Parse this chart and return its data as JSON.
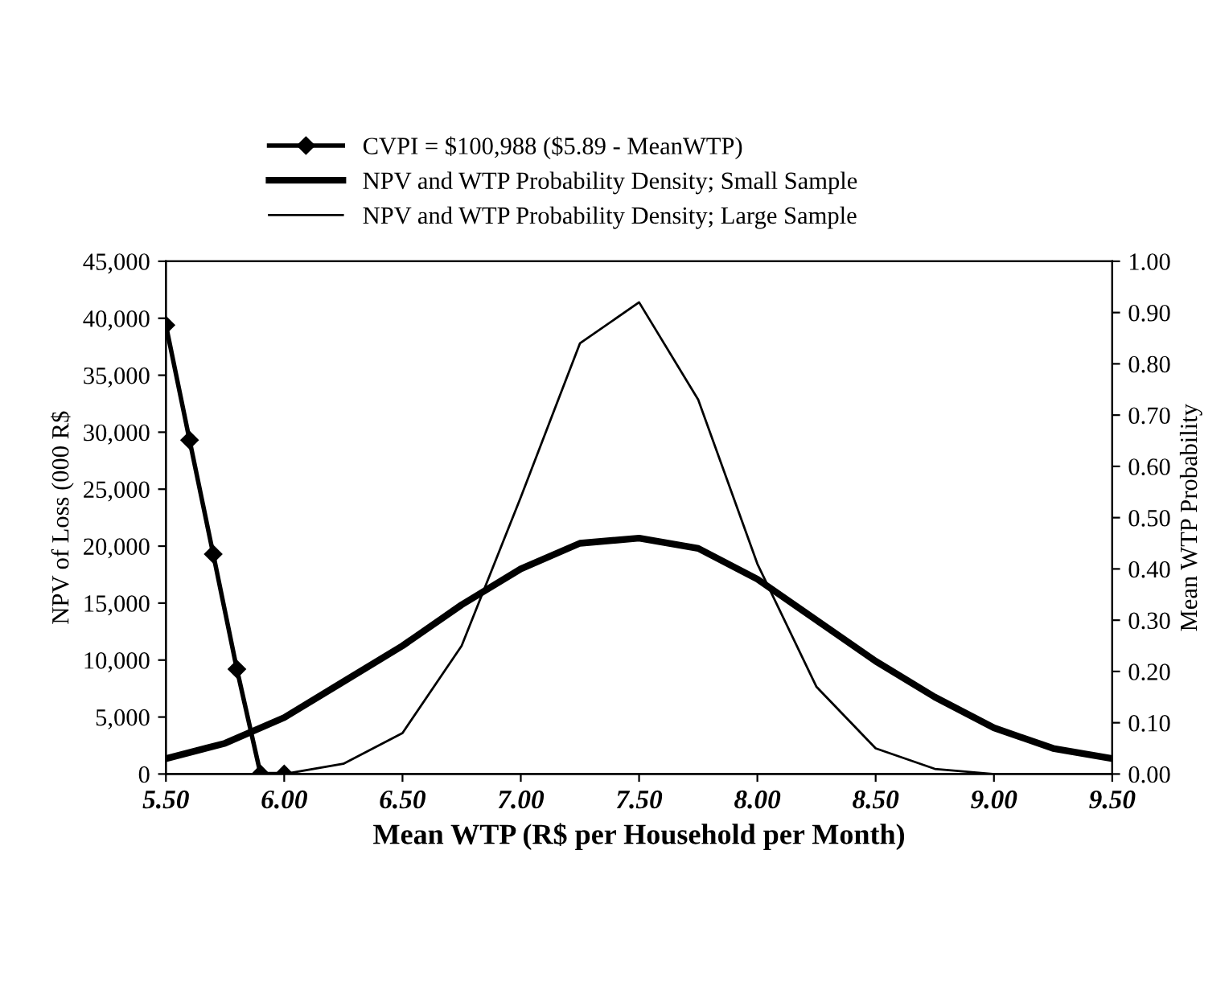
{
  "chart_data": {
    "type": "line",
    "xlabel": "Mean WTP (R$ per Household per Month)",
    "ylabel": "NPV of Loss (000 R$",
    "y2label": "Mean WTP Probability",
    "legend": "top",
    "series": [
      {
        "name": "CVPI = $100,988 ($5.89 - MeanWTP)",
        "color": "#000000",
        "marker": "diamond",
        "x": [
          5.5,
          5.6,
          5.7,
          5.8,
          5.9,
          6.0
        ],
        "values": [
          39400,
          29300,
          19300,
          9200,
          0,
          0
        ]
      },
      {
        "name": "NPV and WTP Probability Density; Small Sample",
        "color": "#000000",
        "axis": "y2",
        "x": [
          5.5,
          5.75,
          6.0,
          6.25,
          6.5,
          6.75,
          7.0,
          7.25,
          7.5,
          7.75,
          8.0,
          8.25,
          8.5,
          8.75,
          9.0,
          9.25,
          9.5
        ],
        "values": [
          0.03,
          0.06,
          0.11,
          0.18,
          0.25,
          0.33,
          0.4,
          0.45,
          0.46,
          0.44,
          0.38,
          0.3,
          0.22,
          0.15,
          0.09,
          0.05,
          0.03
        ]
      },
      {
        "name": "NPV and WTP Probability Density; Large Sample",
        "color": "#000000",
        "axis": "y2",
        "x": [
          6.0,
          6.25,
          6.5,
          6.75,
          7.0,
          7.25,
          7.5,
          7.75,
          8.0,
          8.25,
          8.5,
          8.75,
          9.0
        ],
        "values": [
          0.0,
          0.02,
          0.08,
          0.25,
          0.54,
          0.84,
          0.92,
          0.73,
          0.41,
          0.17,
          0.05,
          0.01,
          0.0
        ]
      }
    ],
    "xlim": [
      5.5,
      9.5
    ],
    "xticks": [
      {
        "value": 5.5,
        "label": "5.50"
      },
      {
        "value": 6.0,
        "label": "6.00"
      },
      {
        "value": 6.5,
        "label": "6.50"
      },
      {
        "value": 7.0,
        "label": "7.00"
      },
      {
        "value": 7.5,
        "label": "7.50"
      },
      {
        "value": 8.0,
        "label": "8.00"
      },
      {
        "value": 8.5,
        "label": "8.50"
      },
      {
        "value": 9.0,
        "label": "9.00"
      },
      {
        "value": 9.5,
        "label": "9.50"
      }
    ],
    "ylim": [
      0,
      45000
    ],
    "yticks": [
      0,
      {
        "value": 5000,
        "label": "5,000"
      },
      {
        "value": 10000,
        "label": "10,000"
      },
      {
        "value": 15000,
        "label": "15,000"
      },
      {
        "value": 20000,
        "label": "20,000"
      },
      {
        "value": 25000,
        "label": "25,000"
      },
      {
        "value": 30000,
        "label": "30,000"
      },
      {
        "value": 35000,
        "label": "35,000"
      },
      {
        "value": 40000,
        "label": "40,000"
      },
      {
        "value": 45000,
        "label": "45,000"
      }
    ],
    "y2lim": [
      0,
      1.0
    ],
    "y2ticks": [
      {
        "value": 0,
        "label": "0.00"
      },
      {
        "value": 0.1,
        "label": "0.10"
      },
      {
        "value": 0.2,
        "label": "0.20"
      },
      {
        "value": 0.3,
        "label": "0.30"
      },
      {
        "value": 0.4,
        "label": "0.40"
      },
      {
        "value": 0.5,
        "label": "0.50"
      },
      {
        "value": 0.6,
        "label": "0.60"
      },
      {
        "value": 0.7,
        "label": "0.70"
      },
      {
        "value": 0.8,
        "label": "0.80"
      },
      {
        "value": 0.9,
        "label": "0.90"
      },
      {
        "value": 1.0,
        "label": "1.00"
      }
    ]
  }
}
